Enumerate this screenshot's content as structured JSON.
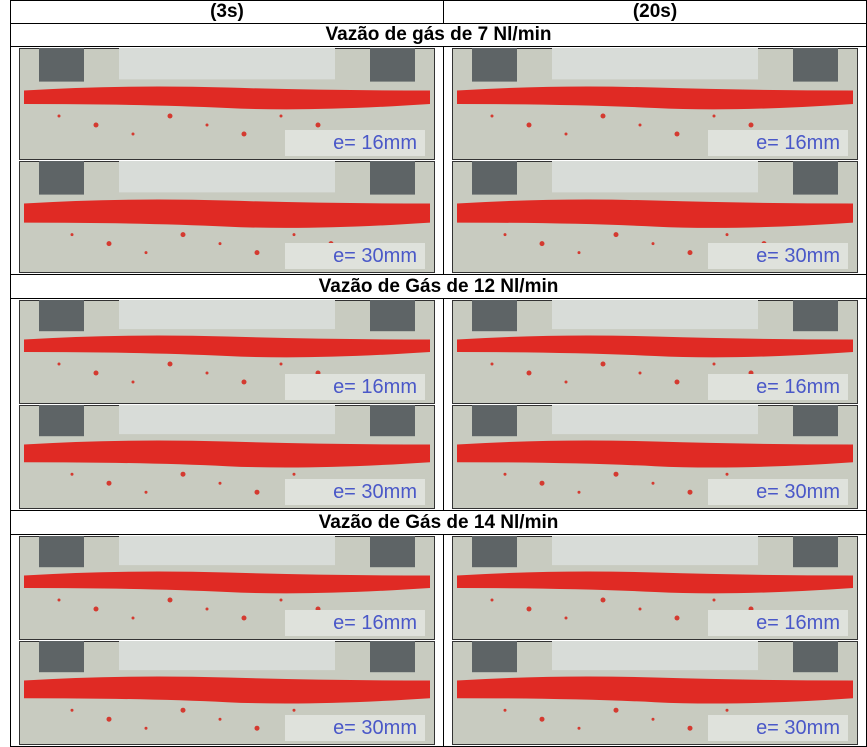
{
  "header": {
    "columns": [
      "(3s)",
      "(20s)"
    ]
  },
  "sections": [
    {
      "title": "Vazão de gás de 7 Nl/min",
      "cells": [
        {
          "images": [
            {
              "label": "e= 16mm"
            },
            {
              "label": "e= 30mm"
            }
          ]
        },
        {
          "images": [
            {
              "label": "e= 16mm"
            },
            {
              "label": "e= 30mm"
            }
          ]
        }
      ]
    },
    {
      "title": "Vazão de Gás de 12 Nl/min",
      "cells": [
        {
          "images": [
            {
              "label": "e= 16mm"
            },
            {
              "label": "e= 30mm"
            }
          ]
        },
        {
          "images": [
            {
              "label": "e= 16mm"
            },
            {
              "label": "e= 30mm"
            }
          ]
        }
      ]
    },
    {
      "title": "Vazão de Gás de 14 Nl/min",
      "cells": [
        {
          "images": [
            {
              "label": "e= 16mm"
            },
            {
              "label": "e= 30mm"
            }
          ]
        },
        {
          "images": [
            {
              "label": "e= 16mm"
            },
            {
              "label": "e= 30mm"
            }
          ]
        }
      ]
    }
  ]
}
